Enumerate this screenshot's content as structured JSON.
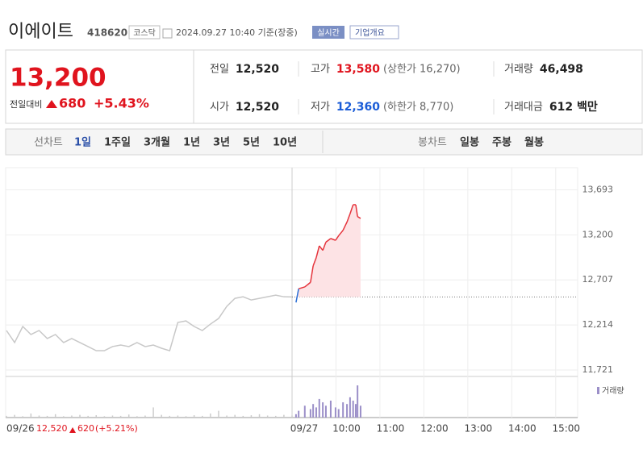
{
  "header": {
    "name": "이에이트",
    "code": "418620",
    "market": "코스닥",
    "datetime": "2024.09.27 10:40 기준(장중)",
    "badge": "실시간",
    "menu": "기업개요"
  },
  "price": {
    "current": "13,200",
    "change_label": "전일대비",
    "change": "680",
    "rate": "+5.43%",
    "color": "#e0141e"
  },
  "stats": [
    {
      "label": "전일",
      "value": "12,520"
    },
    {
      "label": "고가",
      "value": "13,580",
      "color": "#e0141e",
      "note": "(상한가 16,270)"
    },
    {
      "label": "거래량",
      "value": "46,498"
    },
    {
      "label": "시가",
      "value": "12,520"
    },
    {
      "label": "저가",
      "value": "12,360",
      "color": "#1a5cd7",
      "note": "(하한가 8,770)"
    },
    {
      "label": "거래대금",
      "value": "612 백만"
    }
  ],
  "tabs": {
    "line_label": "선차트",
    "periods": [
      "1일",
      "1주일",
      "3개월",
      "1년",
      "3년",
      "5년",
      "10년"
    ],
    "selected": 0,
    "candle_label": "봉차트",
    "candles": [
      "일봉",
      "주봉",
      "월봉"
    ]
  },
  "chart_data": {
    "type": "line",
    "color": "#e5343c",
    "down_color": "#2b6fd6",
    "fill": "#fde3e5",
    "base_value": 12520,
    "x": [
      9.09,
      9.15,
      9.29,
      9.42,
      9.48,
      9.55,
      9.62,
      9.7,
      9.77,
      9.88,
      9.99,
      10.06,
      10.16,
      10.25,
      10.32,
      10.39,
      10.45,
      10.49,
      10.56
    ],
    "values": [
      12460,
      12610,
      12630,
      12680,
      12860,
      12950,
      13080,
      13030,
      13120,
      13160,
      13140,
      13190,
      13250,
      13340,
      13430,
      13530,
      13530,
      13400,
      13380
    ],
    "volume": {
      "name": "거래량",
      "color": "#9b8fc8",
      "ylim": [
        0,
        100
      ],
      "values": [
        10,
        20,
        35,
        25,
        40,
        30,
        55,
        45,
        35,
        50,
        30,
        25,
        45,
        40,
        60,
        50,
        40,
        95,
        35
      ],
      "prev": [
        5,
        8,
        4,
        12,
        6,
        5,
        10,
        4,
        6,
        8,
        5,
        7,
        4,
        6,
        5,
        9,
        4,
        6,
        30,
        8,
        5,
        6,
        4,
        7,
        5,
        12,
        20,
        6,
        8,
        5,
        7,
        10,
        6,
        5,
        8,
        6
      ]
    },
    "xlim": [
      9,
      15.5
    ],
    "ylim": [
      11650,
      13900
    ],
    "xticks": [
      {
        "value": 9,
        "label": "09/27"
      },
      {
        "value": 10,
        "label": "10:00"
      },
      {
        "value": 11,
        "label": "11:00"
      },
      {
        "value": 12,
        "label": "12:00"
      },
      {
        "value": 13,
        "label": "13:00"
      },
      {
        "value": 14,
        "label": "14:00"
      },
      {
        "value": 15,
        "label": "15:00"
      }
    ],
    "yticks": [
      {
        "value": 11721,
        "label": "11,721"
      },
      {
        "value": 12214,
        "label": "12,214"
      },
      {
        "value": 12707,
        "label": "12,707"
      },
      {
        "value": 13200,
        "label": "13,200"
      },
      {
        "value": 13693,
        "label": "13,693"
      }
    ],
    "prev_day": {
      "label": "09/26",
      "color": "#c8c8c8",
      "close": "12,520",
      "change": "620",
      "rate": "(+5.21%)",
      "values": [
        12153,
        12021,
        12197,
        12109,
        12153,
        12065,
        12109,
        12021,
        12065,
        12021,
        11977,
        11932,
        11932,
        11977,
        11994,
        11977,
        12021,
        11977,
        11994,
        11959,
        11932,
        12241,
        12258,
        12197,
        12153,
        12223,
        12285,
        12417,
        12505,
        12522,
        12487,
        12505,
        12522,
        12540,
        12522,
        12520
      ]
    }
  }
}
